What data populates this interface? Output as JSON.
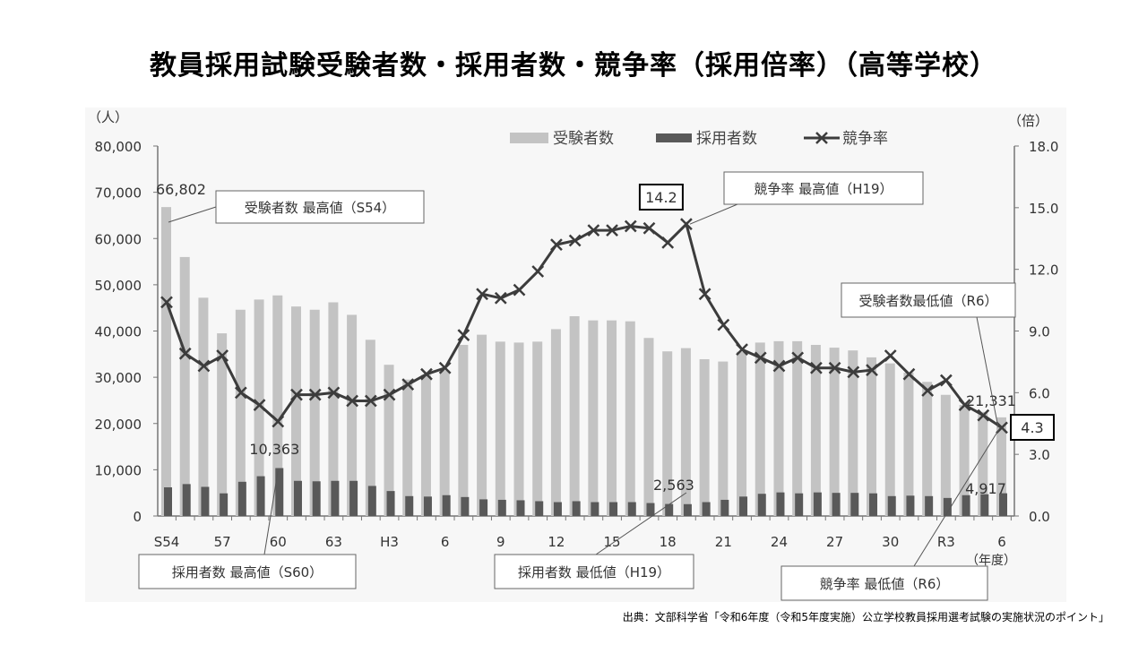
{
  "title": "教員採用試験受験者数・採用者数・競争率（採用倍率）（高等学校）",
  "source": "出典：文部科学省「令和6年度（令和5年度実施）公立学校教員採用選考試験の実施状況のポイント」",
  "chart_data": {
    "type": "bar+line",
    "title": "教員採用試験受験者数・採用者数・競争率（採用倍率）（高等学校）",
    "y_left_unit": "（人）",
    "y_right_unit": "（倍）",
    "x_unit": "（年度）",
    "y_left_lim": [
      0,
      80000
    ],
    "y_left_ticks": [
      "0",
      "10,000",
      "20,000",
      "30,000",
      "40,000",
      "50,000",
      "60,000",
      "70,000",
      "80,000"
    ],
    "y_right_lim": [
      0,
      18
    ],
    "y_right_ticks": [
      "0.0",
      "3.0",
      "6.0",
      "9.0",
      "12.0",
      "15.0",
      "18.0"
    ],
    "grid": false,
    "legend_position": "top",
    "categories": [
      "S54",
      "S55",
      "S56",
      "S57",
      "S58",
      "S59",
      "S60",
      "S61",
      "S62",
      "S63",
      "H1",
      "H2",
      "H3",
      "H4",
      "H5",
      "H6",
      "H7",
      "H8",
      "H9",
      "H10",
      "H11",
      "H12",
      "H13",
      "H14",
      "H15",
      "H16",
      "H17",
      "H18",
      "H19",
      "H20",
      "H21",
      "H22",
      "H23",
      "H24",
      "H25",
      "H26",
      "H27",
      "H28",
      "H29",
      "H30",
      "R1",
      "R2",
      "R3",
      "R4",
      "R5",
      "R6"
    ],
    "tick_labels": [
      "S54",
      "",
      "",
      "57",
      "",
      "",
      "60",
      "",
      "",
      "63",
      "",
      "",
      "H3",
      "",
      "",
      "6",
      "",
      "",
      "9",
      "",
      "",
      "12",
      "",
      "",
      "15",
      "",
      "",
      "18",
      "",
      "",
      "21",
      "",
      "",
      "24",
      "",
      "",
      "27",
      "",
      "",
      "30",
      "",
      "",
      "R3",
      "",
      "",
      "6"
    ],
    "series": [
      {
        "name": "受験者数",
        "type": "bar",
        "axis": "left",
        "color": "#c3c3c3",
        "values": [
          66802,
          56000,
          47200,
          39500,
          44600,
          46800,
          47700,
          45300,
          44600,
          46200,
          43500,
          38100,
          32700,
          29500,
          30500,
          31500,
          37000,
          39200,
          37700,
          37500,
          37700,
          40400,
          43200,
          42300,
          42300,
          42100,
          38500,
          35600,
          36300,
          33900,
          33400,
          35500,
          37500,
          37800,
          37800,
          37000,
          36400,
          35800,
          34300,
          33000,
          31000,
          29000,
          26200,
          24000,
          22500,
          21331
        ]
      },
      {
        "name": "採用者数",
        "type": "bar",
        "axis": "left",
        "color": "#595959",
        "values": [
          6200,
          6900,
          6300,
          4900,
          7400,
          8600,
          10363,
          7600,
          7500,
          7600,
          7600,
          6500,
          5400,
          4300,
          4200,
          4500,
          4100,
          3600,
          3500,
          3400,
          3200,
          3000,
          3200,
          3000,
          3000,
          3000,
          2800,
          2600,
          2563,
          3000,
          3500,
          4200,
          4800,
          5100,
          4900,
          5100,
          5000,
          5000,
          4900,
          4300,
          4400,
          4300,
          3900,
          4500,
          4700,
          4917
        ]
      },
      {
        "name": "競争率",
        "type": "line",
        "axis": "right",
        "color": "#3c3c3c",
        "values": [
          10.4,
          7.9,
          7.3,
          7.8,
          6.0,
          5.4,
          4.6,
          5.9,
          5.9,
          6.0,
          5.6,
          5.6,
          5.9,
          6.4,
          6.9,
          7.2,
          8.8,
          10.8,
          10.6,
          11.0,
          11.9,
          13.2,
          13.4,
          13.9,
          13.9,
          14.1,
          14.0,
          13.3,
          14.2,
          10.8,
          9.3,
          8.1,
          7.7,
          7.3,
          7.7,
          7.2,
          7.2,
          7.0,
          7.1,
          7.8,
          6.9,
          6.1,
          6.6,
          5.4,
          4.9,
          4.3
        ]
      }
    ],
    "data_labels": [
      {
        "text": "66,802",
        "category": "S54",
        "series": "受験者数"
      },
      {
        "text": "10,363",
        "category": "S60",
        "series": "採用者数"
      },
      {
        "text": "2,563",
        "category": "H19",
        "series": "採用者数"
      },
      {
        "text": "14.2",
        "category": "H19",
        "series": "競争率",
        "boxed": true
      },
      {
        "text": "21,331",
        "category": "R6",
        "series": "受験者数"
      },
      {
        "text": "4,917",
        "category": "R6",
        "series": "採用者数"
      },
      {
        "text": "4.3",
        "category": "R6",
        "series": "競争率",
        "boxed": true
      }
    ],
    "annotations": [
      {
        "text": "受験者数 最高値（S54）",
        "category": "S54"
      },
      {
        "text": "採用者数 最高値（S60）",
        "category": "S60"
      },
      {
        "text": "競争率 最高値（H19）",
        "category": "H19"
      },
      {
        "text": "採用者数 最低値（H19）",
        "category": "H19"
      },
      {
        "text": "受験者数最低値（R6）",
        "category": "R6"
      },
      {
        "text": "競争率 最低値（R6）",
        "category": "R6"
      }
    ]
  }
}
